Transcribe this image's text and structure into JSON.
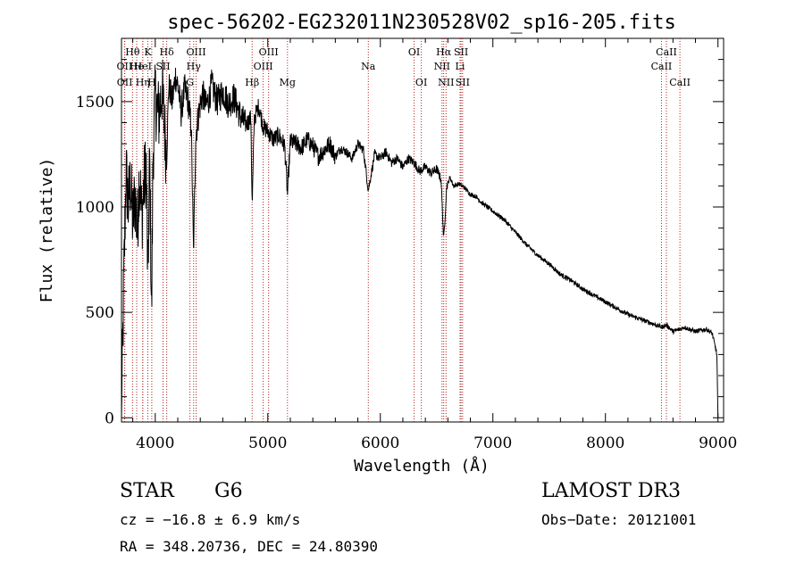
{
  "chart_data": {
    "type": "line",
    "title": "spec-56202-EG232011N230528V02_sp16-205.fits",
    "xlabel": "Wavelength (Å)",
    "ylabel": "Flux (relative)",
    "xlim": [
      3700,
      9050
    ],
    "ylim": [
      -20,
      1800
    ],
    "xticks": [
      4000,
      5000,
      6000,
      7000,
      8000,
      9000
    ],
    "yticks": [
      0,
      500,
      1000,
      1500
    ],
    "series": [
      {
        "name": "flux",
        "x": [
          3700,
          3720,
          3740,
          3760,
          3780,
          3800,
          3820,
          3840,
          3860,
          3880,
          3900,
          3920,
          3934,
          3950,
          3968,
          3980,
          4000,
          4030,
          4060,
          4101,
          4120,
          4150,
          4180,
          4200,
          4230,
          4260,
          4290,
          4320,
          4340,
          4360,
          4390,
          4420,
          4450,
          4480,
          4500,
          4550,
          4600,
          4650,
          4700,
          4750,
          4800,
          4850,
          4861,
          4880,
          4920,
          4960,
          5000,
          5050,
          5100,
          5150,
          5175,
          5200,
          5250,
          5300,
          5350,
          5400,
          5450,
          5500,
          5550,
          5600,
          5650,
          5700,
          5750,
          5800,
          5850,
          5893,
          5950,
          6000,
          6050,
          6100,
          6150,
          6200,
          6250,
          6300,
          6350,
          6400,
          6450,
          6500,
          6540,
          6563,
          6590,
          6620,
          6650,
          6700,
          6750,
          6800,
          6850,
          6900,
          6950,
          7000,
          7100,
          7200,
          7300,
          7400,
          7500,
          7600,
          7700,
          7800,
          7900,
          8000,
          8100,
          8200,
          8300,
          8400,
          8500,
          8542,
          8600,
          8662,
          8700,
          8800,
          8900,
          8950,
          8990,
          9000
        ],
        "y": [
          0,
          620,
          1170,
          1010,
          1120,
          930,
          1060,
          880,
          1180,
          940,
          1110,
          1200,
          620,
          1240,
          470,
          1250,
          1520,
          1430,
          1560,
          1230,
          1580,
          1500,
          1620,
          1580,
          1450,
          1560,
          1510,
          1380,
          780,
          1340,
          1460,
          1540,
          1480,
          1520,
          1580,
          1500,
          1550,
          1490,
          1520,
          1440,
          1390,
          1420,
          1000,
          1420,
          1480,
          1380,
          1360,
          1320,
          1340,
          1290,
          1060,
          1310,
          1300,
          1280,
          1320,
          1290,
          1240,
          1270,
          1300,
          1240,
          1280,
          1260,
          1230,
          1300,
          1270,
          1080,
          1250,
          1230,
          1260,
          1210,
          1230,
          1190,
          1230,
          1210,
          1170,
          1190,
          1160,
          1180,
          1130,
          840,
          1100,
          1140,
          1100,
          1110,
          1090,
          1060,
          1050,
          1020,
          1000,
          980,
          940,
          880,
          820,
          770,
          730,
          680,
          650,
          610,
          580,
          550,
          520,
          490,
          470,
          450,
          430,
          440,
          410,
          420,
          430,
          410,
          420,
          400,
          300,
          0
        ]
      }
    ],
    "lines": [
      {
        "label": "OII",
        "wave": 3727,
        "row": 2
      },
      {
        "label": "OII",
        "wave": 3729,
        "row": 3
      },
      {
        "label": "Hθ",
        "wave": 3798,
        "row": 1
      },
      {
        "label": "He",
        "wave": 3835,
        "row": 2
      },
      {
        "label": "Hη",
        "wave": 3889,
        "row": 3
      },
      {
        "label": "HeI",
        "wave": 3889,
        "row": 2
      },
      {
        "label": "K",
        "wave": 3934,
        "row": 1
      },
      {
        "label": "SII",
        "wave": 4069,
        "row": 2
      },
      {
        "label": "H",
        "wave": 3969,
        "row": 3
      },
      {
        "label": "Hδ",
        "wave": 4102,
        "row": 1
      },
      {
        "label": "OIII",
        "wave": 4363,
        "row": 1
      },
      {
        "label": "Hγ",
        "wave": 4341,
        "row": 2
      },
      {
        "label": "G",
        "wave": 4308,
        "row": 3
      },
      {
        "label": "Hβ",
        "wave": 4861,
        "row": 3
      },
      {
        "label": "OIII",
        "wave": 4959,
        "row": 2
      },
      {
        "label": "OIII",
        "wave": 5007,
        "row": 1
      },
      {
        "label": "Mg",
        "wave": 5175,
        "row": 3
      },
      {
        "label": "Na",
        "wave": 5893,
        "row": 2
      },
      {
        "label": "OI",
        "wave": 6300,
        "row": 1
      },
      {
        "label": "OI",
        "wave": 6364,
        "row": 3
      },
      {
        "label": "Hα",
        "wave": 6563,
        "row": 1
      },
      {
        "label": "NII",
        "wave": 6548,
        "row": 2
      },
      {
        "label": "NII",
        "wave": 6584,
        "row": 3
      },
      {
        "label": "SII",
        "wave": 6717,
        "row": 1
      },
      {
        "label": "Li",
        "wave": 6708,
        "row": 2
      },
      {
        "label": "SII",
        "wave": 6731,
        "row": 3
      },
      {
        "label": "CaII",
        "wave": 8542,
        "row": 1
      },
      {
        "label": "CaII",
        "wave": 8498,
        "row": 2
      },
      {
        "label": "CaII",
        "wave": 8662,
        "row": 3
      }
    ]
  },
  "footer": {
    "object_type": "STAR",
    "subclass": "G6",
    "survey": "LAMOST DR3",
    "cz": "cz = −16.8 ± 6.9 km/s",
    "obs_date": "Obs−Date: 20121001",
    "coords": "RA = 348.20736, DEC =  24.80390"
  }
}
